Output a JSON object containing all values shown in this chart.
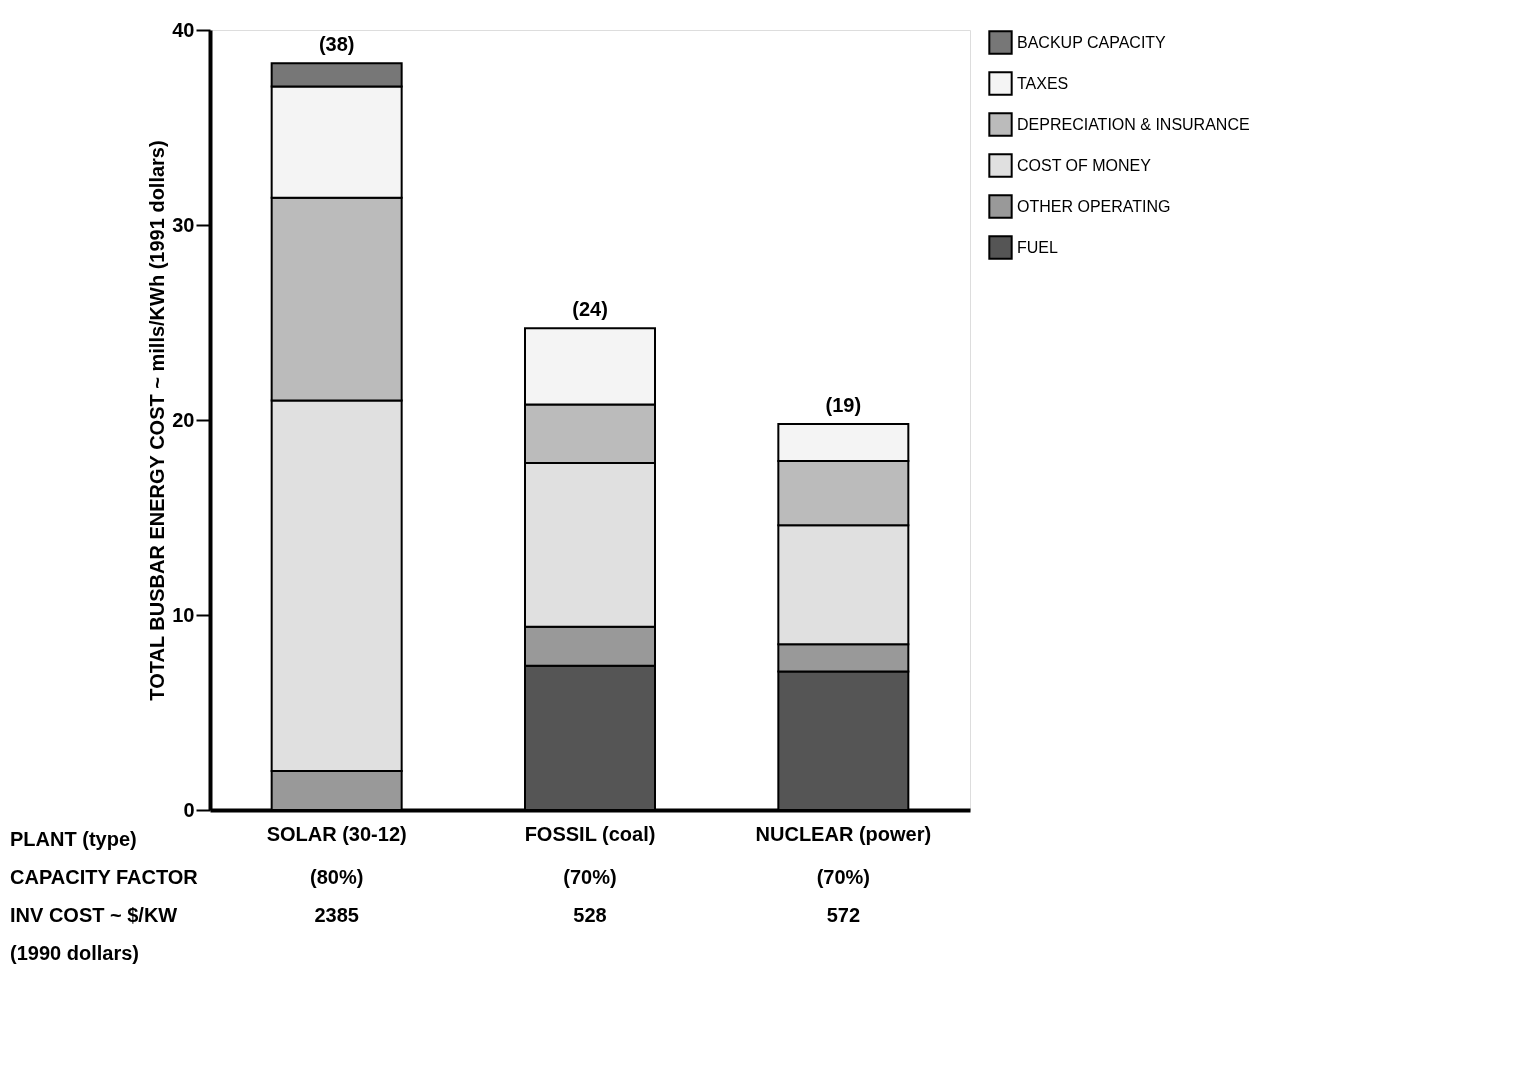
{
  "chart_data": {
    "type": "bar",
    "stacked": true,
    "ylabel": "TOTAL BUSBAR ENERGY COST ~ mills/KWh (1991 dollars)",
    "categories": [
      "SOLAR (30-12)",
      "FOSSIL (coal)",
      "NUCLEAR (power)"
    ],
    "series": [
      {
        "name": "FUEL",
        "color": "#555555",
        "values": [
          null,
          7.4,
          7.1
        ]
      },
      {
        "name": "OTHER OPERATING",
        "color": "#999999",
        "values": [
          2.0,
          2.0,
          1.4
        ]
      },
      {
        "name": "COST OF MONEY",
        "color": "#e0e0e0",
        "values": [
          19.0,
          8.4,
          6.1
        ]
      },
      {
        "name": "DEPRECIATION & INSURANCE",
        "color": "#bbbbbb",
        "values": [
          10.4,
          3.0,
          3.3
        ]
      },
      {
        "name": "TAXES",
        "color": "#f4f4f4",
        "values": [
          5.7,
          3.9,
          1.9
        ]
      },
      {
        "name": "BACKUP CAPACITY",
        "color": "#777777",
        "values": [
          1.2,
          null,
          null
        ]
      }
    ],
    "totals": [
      "(38)",
      "(24)",
      "(19)"
    ],
    "ylim": [
      0,
      40
    ],
    "yticks": [
      0,
      10,
      20,
      30,
      40
    ],
    "grid": false,
    "legend": "right",
    "annotations": [
      "PLANT (type)",
      "CAPACITY FACTOR",
      "(80%)",
      "(70%)",
      "(70%)",
      "INV COST ~ $/KW",
      "2385",
      "528",
      "572",
      "(1990 dollars)"
    ]
  }
}
